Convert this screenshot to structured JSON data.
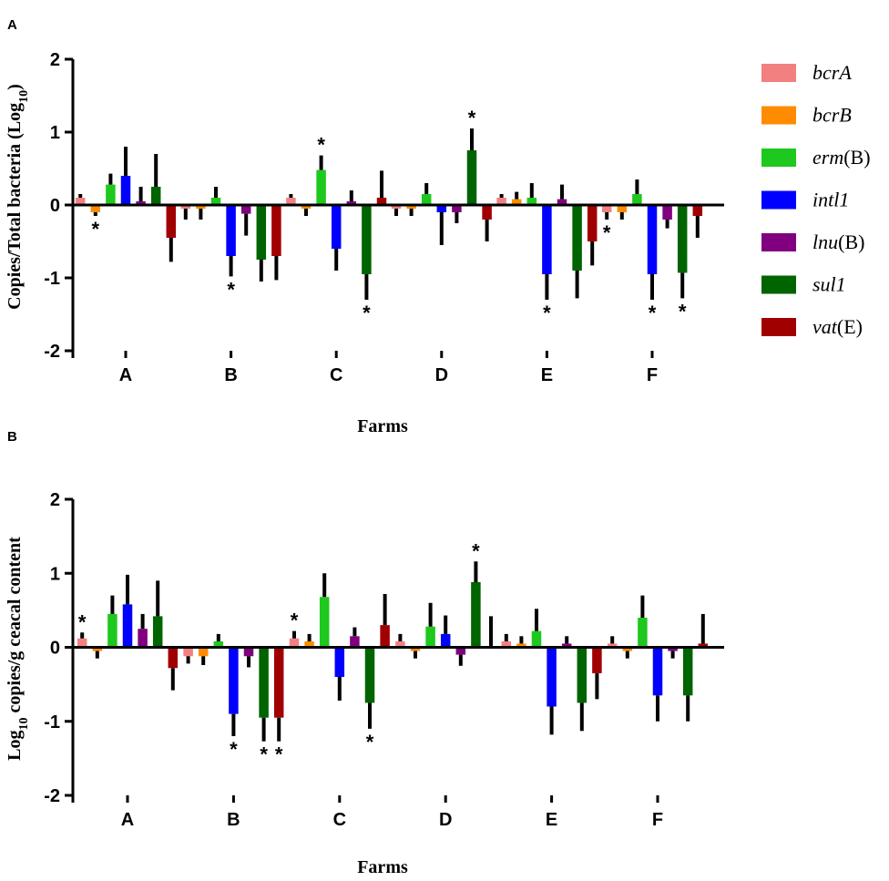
{
  "legend": {
    "items": [
      {
        "key": "bcrA",
        "italic": "bcrA",
        "suffix": "",
        "color": "#f28080"
      },
      {
        "key": "bcrB",
        "italic": "bcrB",
        "suffix": "",
        "color": "#ff8c00"
      },
      {
        "key": "ermB",
        "italic": "erm",
        "suffix": "(B)",
        "color": "#1ec81e"
      },
      {
        "key": "intI1",
        "italic": "intl1",
        "suffix": "",
        "color": "#0000ff"
      },
      {
        "key": "lnuB",
        "italic": "lnu",
        "suffix": "(B)",
        "color": "#800080"
      },
      {
        "key": "sul1",
        "italic": "sul1",
        "suffix": "",
        "color": "#006400"
      },
      {
        "key": "vatE",
        "italic": "vat",
        "suffix": "(E)",
        "color": "#a00000"
      }
    ]
  },
  "chart_data": [
    {
      "type": "bar",
      "panel_label": "A",
      "categories": [
        "A",
        "B",
        "C",
        "D",
        "E",
        "F"
      ],
      "xlabel": "Farms",
      "ylabel_main": "Copies/Total bacteria (Log",
      "ylabel_sub": "10",
      "ylabel_end": ")",
      "ylim": [
        -2,
        2
      ],
      "yticks": [
        "-2",
        "-1",
        "0",
        "1",
        "2"
      ],
      "series": [
        {
          "name": "bcrA",
          "values": [
            0.1,
            -0.05,
            0.1,
            -0.05,
            0.1,
            -0.1
          ],
          "errors": [
            0.05,
            0.15,
            0.05,
            0.1,
            0.05,
            0.1
          ]
        },
        {
          "name": "bcrB",
          "values": [
            -0.1,
            -0.05,
            -0.05,
            -0.05,
            0.08,
            -0.1
          ],
          "errors": [
            0.05,
            0.15,
            0.1,
            0.1,
            0.1,
            0.1
          ]
        },
        {
          "name": "erm(B)",
          "values": [
            0.28,
            0.1,
            0.48,
            0.15,
            0.1,
            0.15
          ],
          "errors": [
            0.15,
            0.15,
            0.2,
            0.15,
            0.2,
            0.2
          ]
        },
        {
          "name": "intl1",
          "values": [
            0.4,
            -0.7,
            -0.6,
            -0.1,
            -0.95,
            -0.95
          ],
          "errors": [
            0.4,
            0.28,
            0.3,
            0.45,
            0.35,
            0.35
          ]
        },
        {
          "name": "lnu(B)",
          "values": [
            0.05,
            -0.12,
            0.05,
            -0.1,
            0.08,
            -0.2
          ],
          "errors": [
            0.2,
            0.3,
            0.15,
            0.15,
            0.2,
            0.12
          ]
        },
        {
          "name": "sul1",
          "values": [
            0.25,
            -0.75,
            -0.95,
            0.75,
            -0.9,
            -0.93
          ],
          "errors": [
            0.45,
            0.3,
            0.35,
            0.3,
            0.38,
            0.35
          ]
        },
        {
          "name": "vat(E)",
          "values": [
            -0.45,
            -0.7,
            0.1,
            -0.2,
            -0.5,
            -0.15
          ],
          "errors": [
            0.33,
            0.33,
            0.37,
            0.3,
            0.33,
            0.3
          ]
        }
      ],
      "significance": [
        {
          "series": "bcrB",
          "category": "A"
        },
        {
          "series": "intl1",
          "category": "B"
        },
        {
          "series": "erm(B)",
          "category": "C"
        },
        {
          "series": "sul1",
          "category": "C"
        },
        {
          "series": "sul1",
          "category": "D"
        },
        {
          "series": "intl1",
          "category": "E"
        },
        {
          "series": "bcrA",
          "category": "F"
        },
        {
          "series": "intl1",
          "category": "F"
        },
        {
          "series": "sul1",
          "category": "F"
        }
      ]
    },
    {
      "type": "bar",
      "panel_label": "B",
      "categories": [
        "A",
        "B",
        "C",
        "D",
        "E",
        "F"
      ],
      "xlabel": "Farms",
      "ylabel_main": "Log",
      "ylabel_sub": "10",
      "ylabel_end": " copies/g ceacal content",
      "ylim": [
        -2,
        2
      ],
      "yticks": [
        "-2",
        "-1",
        "0",
        "1",
        "2"
      ],
      "series": [
        {
          "name": "bcrA",
          "values": [
            0.12,
            -0.12,
            0.12,
            0.08,
            0.08,
            0.05
          ],
          "errors": [
            0.08,
            0.1,
            0.1,
            0.1,
            0.1,
            0.1
          ]
        },
        {
          "name": "bcrB",
          "values": [
            -0.05,
            -0.12,
            0.08,
            -0.05,
            0.05,
            -0.05
          ],
          "errors": [
            0.1,
            0.12,
            0.1,
            0.1,
            0.1,
            0.1
          ]
        },
        {
          "name": "erm(B)",
          "values": [
            0.45,
            0.08,
            0.68,
            0.28,
            0.22,
            0.4
          ],
          "errors": [
            0.25,
            0.1,
            0.32,
            0.32,
            0.3,
            0.3
          ]
        },
        {
          "name": "intl1",
          "values": [
            0.58,
            -0.9,
            -0.4,
            0.18,
            -0.8,
            -0.65
          ],
          "errors": [
            0.4,
            0.3,
            0.32,
            0.25,
            0.38,
            0.35
          ]
        },
        {
          "name": "lnu(B)",
          "values": [
            0.25,
            -0.12,
            0.15,
            -0.1,
            0.05,
            -0.05
          ],
          "errors": [
            0.2,
            0.15,
            0.12,
            0.15,
            0.1,
            0.1
          ]
        },
        {
          "name": "sul1",
          "values": [
            0.42,
            -0.95,
            -0.75,
            0.88,
            -0.75,
            -0.65
          ],
          "errors": [
            0.48,
            0.32,
            0.35,
            0.28,
            0.38,
            0.35
          ]
        },
        {
          "name": "vat(E)",
          "values": [
            -0.28,
            -0.95,
            0.3,
            0.0,
            -0.35,
            0.05
          ],
          "errors": [
            0.3,
            0.32,
            0.42,
            0.42,
            0.35,
            0.4
          ]
        }
      ],
      "significance": [
        {
          "series": "bcrA",
          "category": "A"
        },
        {
          "series": "intl1",
          "category": "B"
        },
        {
          "series": "sul1",
          "category": "B"
        },
        {
          "series": "vat(E)",
          "category": "B"
        },
        {
          "series": "bcrA",
          "category": "C"
        },
        {
          "series": "sul1",
          "category": "C"
        },
        {
          "series": "sul1",
          "category": "D"
        }
      ]
    }
  ],
  "significance_symbol": "*"
}
